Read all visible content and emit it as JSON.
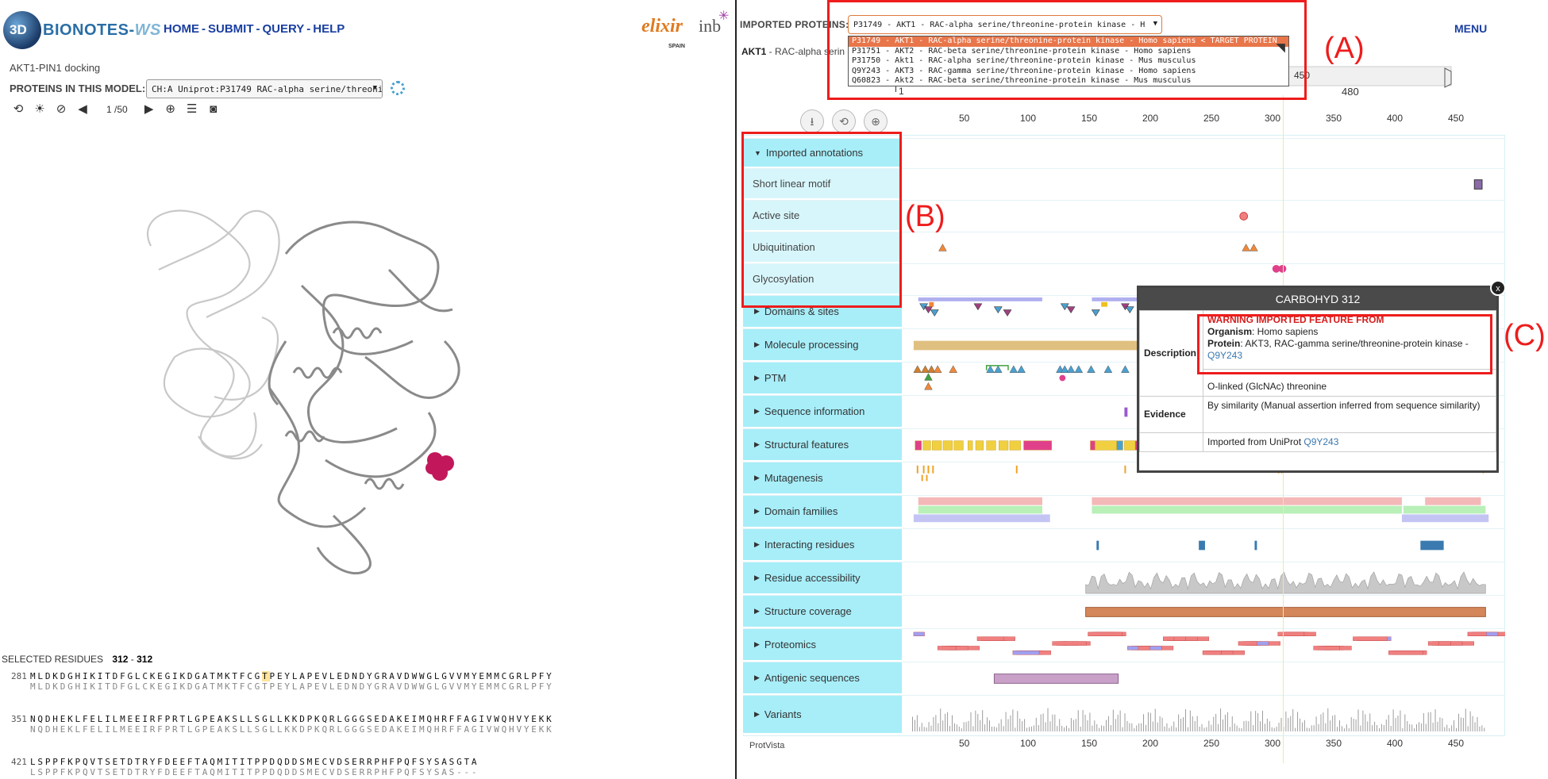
{
  "app": {
    "logo_prefix": "3D",
    "logo_name": "BIONOTES-",
    "logo_suffix": "WS",
    "nav": [
      "HOME",
      "SUBMIT",
      "QUERY",
      "HELP"
    ],
    "partner_elixir": "elixir",
    "partner_elixir_sub": "SPAIN",
    "partner_inb": "inb"
  },
  "left": {
    "model_title": "AKT1-PIN1 docking",
    "proteins_label": "PROTEINS IN THIS MODEL:",
    "proteins_value": "CH:A Uniprot:P31749 RAC-alpha serine/threonine",
    "counter": "1 /50",
    "toolbar_icons": [
      "reset-icon",
      "sun-icon",
      "eye-slash-icon",
      "arrow-left-icon",
      "arrow-right-icon",
      "crosshair-icon",
      "table-icon",
      "camera-icon"
    ],
    "selected_label": "SELECTED RESIDUES",
    "selected_start": "312",
    "selected_sep": "-",
    "selected_end": "312",
    "sequences": [
      {
        "start": "281",
        "top_pre": "MLDKDGHIKITDFGLCKEGIKDGATMKTFCG",
        "top_hl": "T",
        "top_post": "PEYLAPEVLEDNDYGRAVDWWGLGVVMYEMMCGRLPFY",
        "bottom": "MLDKDGHIKITDFGLCKEGIKDGATMKTFCGTPEYLAPEVLEDNDYGRAVDWWGLGVVMYEMMCGRLPFY"
      },
      {
        "start": "351",
        "top_pre": "NQDHEKLFELILMEEIRFPRTLGPEAKSLLSGLLKKDPKQRLGGGSEDAKEIMQHRFFAGIVWQHVYEKK",
        "top_hl": "",
        "top_post": "",
        "bottom": "NQDHEKLFELILMEEIRFPRTLGPEAKSLLSGLLKKDPKQRLGGGSEDAKEIMQHRFFAGIVWQHVYEKK"
      },
      {
        "start": "421",
        "top_pre": "LSPPFKPQVTSETDTRYFDEEFTAQMITITPPDQDDSMECVDSERRPHFPQFSYSASGTA",
        "top_hl": "",
        "top_post": "",
        "bottom": "LSPPFKPQVTSETDTRYFDEEFTAQMITITPPDQDDSMECVDSERRPHFPQFSYSAS---"
      }
    ]
  },
  "right": {
    "imported_label": "IMPORTED PROTEINS:",
    "imported_value": "P31749 - AKT1 - RAC-alpha serine/threonine-protein kinase - H",
    "options": [
      "P31749 - AKT1 - RAC-alpha serine/threonine-protein kinase - Homo sapiens < TARGET PROTEIN",
      "P31751 - AKT2 - RAC-beta serine/threonine-protein kinase - Homo sapiens",
      "P31750 - Akt1 - RAC-alpha serine/threonine-protein kinase - Mus musculus",
      "Q9Y243 - AKT3 - RAC-gamma serine/threonine-protein kinase - Homo sapiens",
      "Q60823 - Akt2 - RAC-beta serine/threonine-protein kinase - Mus musculus"
    ],
    "menu": "MENU",
    "akt_title_bold": "AKT1",
    "akt_title_rest": " - RAC-alpha serin",
    "top_scale_labels": [
      "350",
      "400",
      "450"
    ],
    "top_scale_start": "1",
    "top_scale_end": "480",
    "scale_labels": [
      "50",
      "100",
      "150",
      "200",
      "250",
      "300",
      "350",
      "400",
      "450"
    ],
    "footer_brand": "ProtVista",
    "tracks": [
      {
        "label": "Imported annotations",
        "type": "cat-open"
      },
      {
        "label": "Short linear motif",
        "type": "sub"
      },
      {
        "label": "Active site",
        "type": "sub"
      },
      {
        "label": "Ubiquitination",
        "type": "sub"
      },
      {
        "label": "Glycosylation",
        "type": "sub"
      },
      {
        "label": "Domains & sites",
        "type": "cat"
      },
      {
        "label": "Molecule processing",
        "type": "cat"
      },
      {
        "label": "PTM",
        "type": "cat"
      },
      {
        "label": "Sequence information",
        "type": "cat"
      },
      {
        "label": "Structural features",
        "type": "cat"
      },
      {
        "label": "Mutagenesis",
        "type": "cat"
      },
      {
        "label": "Domain families",
        "type": "cat"
      },
      {
        "label": "Interacting residues",
        "type": "cat"
      },
      {
        "label": "Residue accessibility",
        "type": "cat"
      },
      {
        "label": "Structure coverage",
        "type": "cat"
      },
      {
        "label": "Proteomics",
        "type": "cat"
      },
      {
        "label": "Antigenic sequences",
        "type": "cat"
      },
      {
        "label": "Variants",
        "type": "cat"
      }
    ]
  },
  "tooltip": {
    "title": "CARBOHYD 312",
    "close": "x",
    "desc_key": "Description",
    "warning": "WARNING IMPORTED FEATURE FROM",
    "organism_key": "Organism",
    "organism_value": ": Homo sapiens",
    "protein_key": "Protein",
    "protein_value": ": AKT3, RAC-gamma serine/threonine-protein kinase - ",
    "protein_link": "Q9Y243",
    "desc_text": "O-linked (GlcNAc) threonine",
    "evidence_key": "Evidence",
    "evidence_text": "By similarity (Manual assertion inferred from sequence similarity)",
    "imported_text": "Imported from UniProt ",
    "imported_link": "Q9Y243"
  },
  "annotations": {
    "a": "(A)",
    "b": "(B)",
    "c": "(C)"
  },
  "colors": {
    "track_label": "#a7eef9",
    "track_sub": "#d7f6fc",
    "nav": "#1a3fa0",
    "highlight_box": "#ee1c1c",
    "ligand": "#c2185b"
  }
}
